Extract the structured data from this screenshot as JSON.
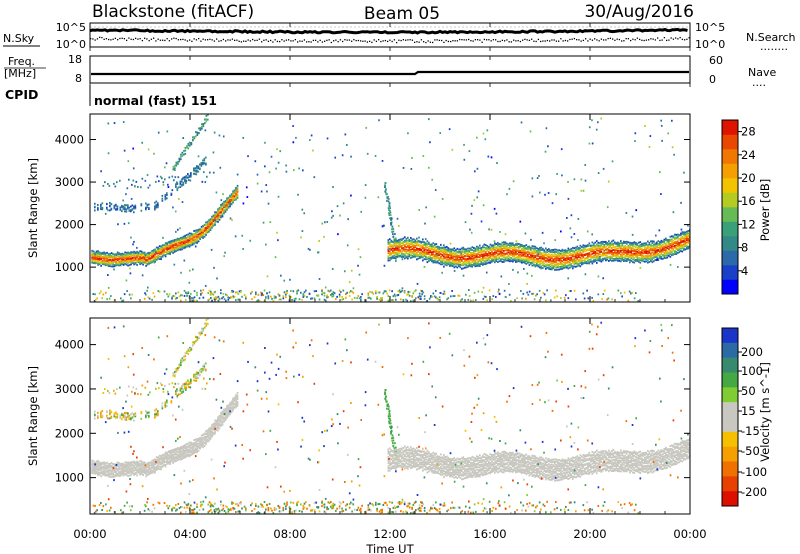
{
  "header": {
    "radar": "Blackstone (fitACF)",
    "beam": "Beam 05",
    "date": "30/Aug/2016"
  },
  "noise_panel": {
    "left_label": "N.Sky",
    "right_label": "N.Search",
    "right_legend": "........",
    "left_ticks": [
      "10^5",
      "10^0"
    ],
    "right_ticks": [
      "10^5",
      "10^0"
    ]
  },
  "freq_panel": {
    "left_label_1": "Freq.",
    "left_label_2": "[MHz]",
    "right_label": "Nave",
    "right_legend": "....",
    "left_ticks": [
      "18",
      "8"
    ],
    "right_ticks": [
      "60",
      "0"
    ]
  },
  "cpid": {
    "label": "CPID",
    "program": "normal (fast) 151"
  },
  "time_axis": {
    "label": "Time UT",
    "ticks": [
      "00:00",
      "04:00",
      "08:00",
      "12:00",
      "16:00",
      "20:00",
      "00:00"
    ]
  },
  "chart_data": [
    {
      "type": "heatmap",
      "title": "",
      "xlabel": "Time UT",
      "ylabel": "Slant Range [km]",
      "xlim_hours": [
        0,
        24
      ],
      "ylim_km": [
        180,
        4600
      ],
      "yticks": [
        1000,
        2000,
        3000,
        4000
      ],
      "colorbar": {
        "label": "Power [dB]",
        "ticks": [
          "4",
          "8",
          "12",
          "16",
          "20",
          "24",
          "28"
        ],
        "range": [
          0,
          30
        ],
        "colors": [
          "#0000ff",
          "#1a3fc8",
          "#2a6aa8",
          "#338888",
          "#3aa07a",
          "#66bb55",
          "#b4cc22",
          "#f2c400",
          "#f5a000",
          "#f07800",
          "#e84800",
          "#dd1500"
        ]
      },
      "features": [
        {
          "name": "main-band",
          "times_h": [
            0,
            1,
            2,
            3,
            4,
            5,
            5.8
          ],
          "range_km": [
            1200,
            1180,
            1300,
            1600,
            1950,
            2400,
            2900
          ]
        },
        {
          "name": "main-band-late",
          "times_h": [
            11.7,
            12.5,
            14,
            15.5,
            17,
            18.5,
            20,
            22,
            23.8
          ],
          "range_km": [
            1450,
            1450,
            1400,
            1250,
            1350,
            1200,
            1300,
            1500,
            1650
          ]
        }
      ]
    },
    {
      "type": "heatmap",
      "title": "",
      "xlabel": "Time UT",
      "ylabel": "Slant Range [km]",
      "xlim_hours": [
        0,
        24
      ],
      "ylim_km": [
        180,
        4600
      ],
      "yticks": [
        1000,
        2000,
        3000,
        4000
      ],
      "colorbar": {
        "label": "Velocity [m s^-1]",
        "ticks": [
          "200",
          "100",
          "50",
          "15",
          "-15",
          "-50",
          "-100",
          "-200"
        ],
        "range": [
          -250,
          250
        ],
        "colors": [
          "#1a35c8",
          "#2c6aa5",
          "#378a6e",
          "#44a844",
          "#80cc33",
          "#c8c8c0",
          "#c8c8c0",
          "#f5c000",
          "#f5a000",
          "#f07000",
          "#e84000",
          "#dd1000"
        ]
      }
    }
  ]
}
